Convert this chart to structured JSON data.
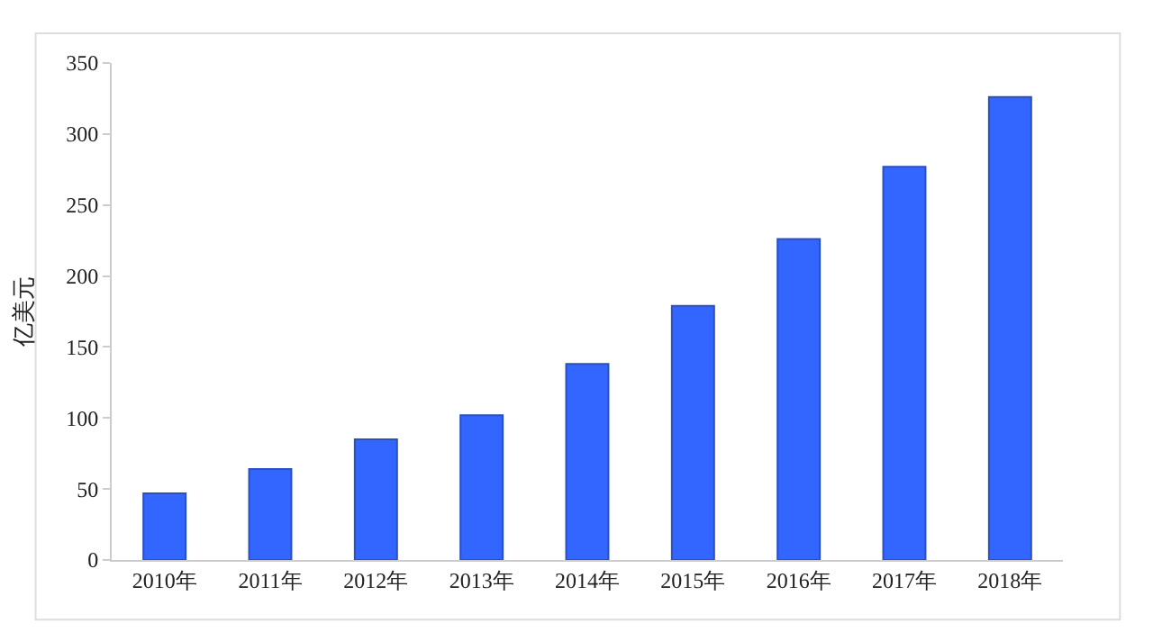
{
  "chart_data": {
    "type": "bar",
    "ylabel": "亿美元",
    "categories": [
      "2010年",
      "2011年",
      "2012年",
      "2013年",
      "2014年",
      "2015年",
      "2016年",
      "2017年",
      "2018年"
    ],
    "series": [
      {
        "color": "#3366ff",
        "values": [
          47,
          64,
          85,
          102,
          138,
          179,
          226,
          277,
          326
        ]
      }
    ],
    "ylim": [
      0,
      350
    ],
    "yticks": [
      0,
      50,
      100,
      150,
      200,
      250,
      300,
      350
    ],
    "grid": false
  }
}
